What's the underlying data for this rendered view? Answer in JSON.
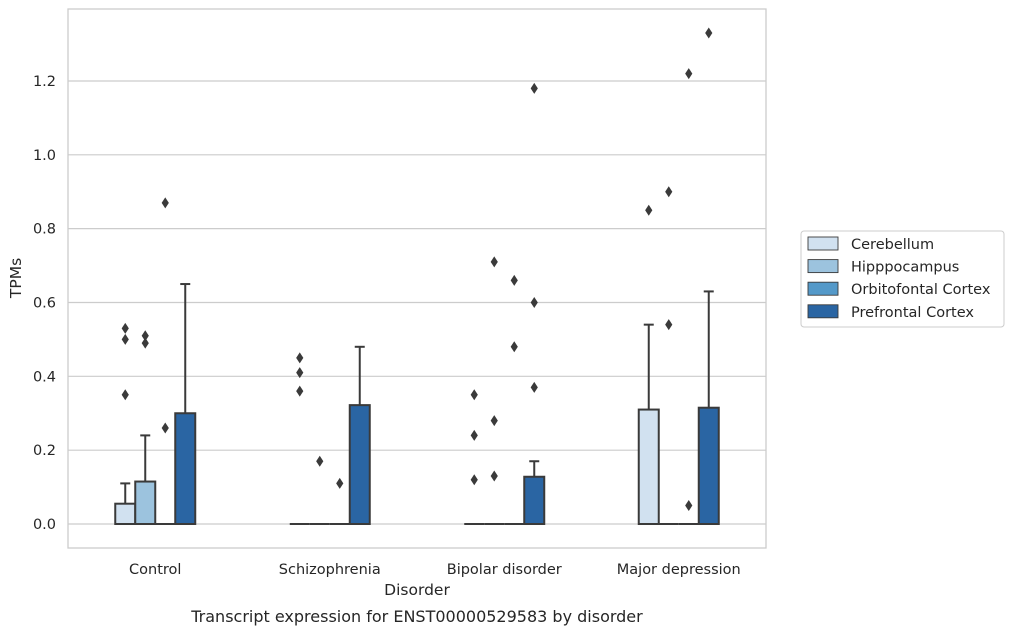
{
  "chart_data": {
    "type": "box",
    "title": "",
    "caption": "Transcript expression for ENST00000529583 by disorder",
    "xlabel": "Disorder",
    "ylabel": "TPMs",
    "ylim": [
      -0.065,
      1.395
    ],
    "yticks": [
      "0.0",
      "0.2",
      "0.4",
      "0.6",
      "0.8",
      "1.0",
      "1.2"
    ],
    "grid": "horizontal",
    "legend_position": "right",
    "categories": [
      "Control",
      "Schizophrenia",
      "Bipolar disorder",
      "Major depression"
    ],
    "series": [
      {
        "name": "Cerebellum",
        "color": "#d1e1f0",
        "boxes": [
          {
            "q1": 0.0,
            "median": 0.0,
            "q3": 0.055,
            "whisker_low": 0.0,
            "whisker_high": 0.11,
            "outliers": [
              0.35,
              0.5,
              0.53
            ]
          },
          {
            "q1": 0.0,
            "median": 0.0,
            "q3": 0.0,
            "whisker_low": 0.0,
            "whisker_high": 0.0,
            "outliers": [
              0.36,
              0.41,
              0.45
            ]
          },
          {
            "q1": 0.0,
            "median": 0.0,
            "q3": 0.0,
            "whisker_low": 0.0,
            "whisker_high": 0.0,
            "outliers": [
              0.12,
              0.24,
              0.35
            ]
          },
          {
            "q1": 0.0,
            "median": 0.0,
            "q3": 0.31,
            "whisker_low": 0.0,
            "whisker_high": 0.54,
            "outliers": [
              0.85
            ]
          }
        ]
      },
      {
        "name": "Hipppocampus",
        "color": "#9cc3de",
        "boxes": [
          {
            "q1": 0.0,
            "median": 0.0,
            "q3": 0.115,
            "whisker_low": 0.0,
            "whisker_high": 0.24,
            "outliers": [
              0.49,
              0.51
            ]
          },
          {
            "q1": 0.0,
            "median": 0.0,
            "q3": 0.0,
            "whisker_low": 0.0,
            "whisker_high": 0.0,
            "outliers": [
              0.17
            ]
          },
          {
            "q1": 0.0,
            "median": 0.0,
            "q3": 0.0,
            "whisker_low": 0.0,
            "whisker_high": 0.0,
            "outliers": [
              0.13,
              0.28,
              0.71
            ]
          },
          {
            "q1": 0.0,
            "median": 0.0,
            "q3": 0.0,
            "whisker_low": 0.0,
            "whisker_high": 0.0,
            "outliers": [
              0.54,
              0.9
            ]
          }
        ]
      },
      {
        "name": "Orbitofontal Cortex",
        "color": "#5499c9",
        "boxes": [
          {
            "q1": 0.0,
            "median": 0.0,
            "q3": 0.0,
            "whisker_low": 0.0,
            "whisker_high": 0.0,
            "outliers": [
              0.26,
              0.87
            ]
          },
          {
            "q1": 0.0,
            "median": 0.0,
            "q3": 0.0,
            "whisker_low": 0.0,
            "whisker_high": 0.0,
            "outliers": [
              0.11
            ]
          },
          {
            "q1": 0.0,
            "median": 0.0,
            "q3": 0.0,
            "whisker_low": 0.0,
            "whisker_high": 0.0,
            "outliers": [
              0.48,
              0.66
            ]
          },
          {
            "q1": 0.0,
            "median": 0.0,
            "q3": 0.0,
            "whisker_low": 0.0,
            "whisker_high": 0.0,
            "outliers": [
              0.05,
              1.22
            ]
          }
        ]
      },
      {
        "name": "Prefrontal Cortex",
        "color": "#2a65a3",
        "boxes": [
          {
            "q1": 0.0,
            "median": 0.0,
            "q3": 0.3,
            "whisker_low": 0.0,
            "whisker_high": 0.65,
            "outliers": []
          },
          {
            "q1": 0.0,
            "median": 0.0,
            "q3": 0.322,
            "whisker_low": 0.0,
            "whisker_high": 0.48,
            "outliers": []
          },
          {
            "q1": 0.0,
            "median": 0.0,
            "q3": 0.128,
            "whisker_low": 0.0,
            "whisker_high": 0.17,
            "outliers": [
              0.37,
              0.6,
              1.18
            ]
          },
          {
            "q1": 0.0,
            "median": 0.0,
            "q3": 0.315,
            "whisker_low": 0.0,
            "whisker_high": 0.63,
            "outliers": [
              1.33
            ]
          }
        ]
      }
    ]
  }
}
